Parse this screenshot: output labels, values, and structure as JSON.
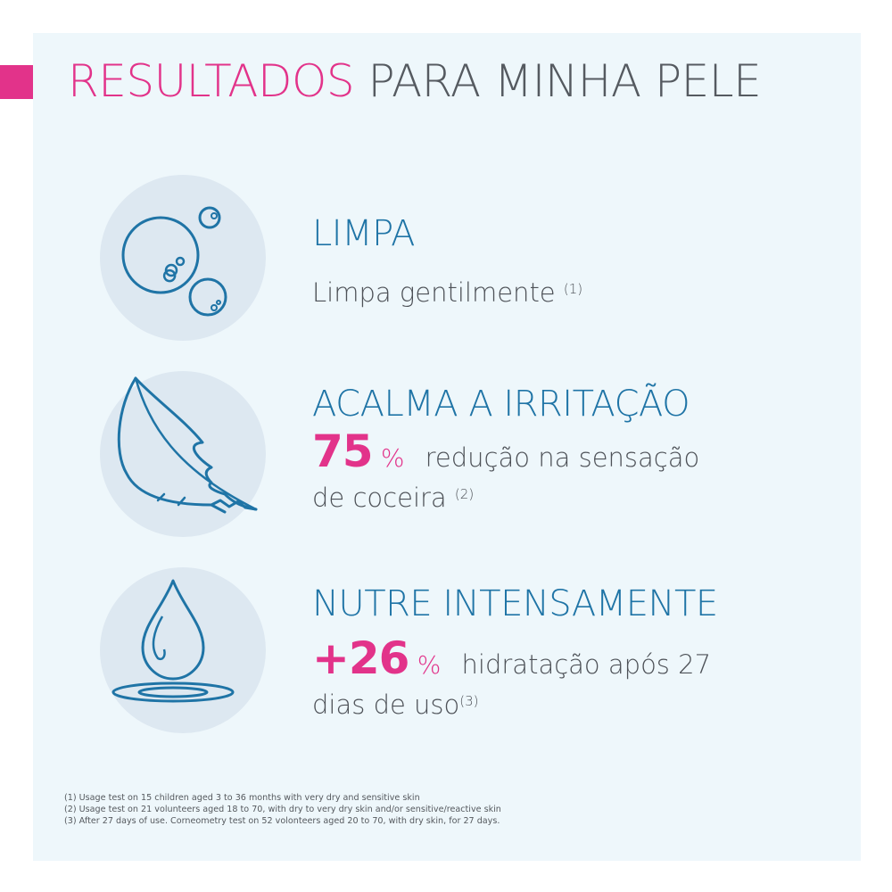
{
  "title": {
    "part1": "RESULTADOS",
    "part2": "PARA MINHA PELE"
  },
  "colors": {
    "accent": "#e2338a",
    "heading": "#1f74a6",
    "text": "#4d5157",
    "panel": "#eef7fb",
    "circle": "#dde8f1"
  },
  "benefits": [
    {
      "icon": "bubbles-icon",
      "heading": "LIMPA",
      "text": "Limpa gentilmente",
      "ref": "(1)"
    },
    {
      "icon": "feather-icon",
      "heading": "ACALMA A IRRITAÇÃO",
      "stat": "75",
      "stat_unit": "%",
      "text_line1": "redução na sensação",
      "text_line2": "de coceira",
      "ref": "(2)"
    },
    {
      "icon": "water-drop-icon",
      "heading": "NUTRE INTENSAMENTE",
      "stat": "+26",
      "stat_unit": "%",
      "text_line1": "hidratação após 27",
      "text_line2": "dias de uso",
      "ref": "(3)"
    }
  ],
  "footnotes": [
    "(1) Usage test on 15 children aged 3 to 36 months with very dry and sensitive skin",
    "(2) Usage test on 21 volunteers aged 18 to 70, with dry to very dry skin and/or sensitive/reactive skin",
    "(3) After 27 days of use. Corneometry test on 52 volonteers aged 20 to 70, with dry skin, for 27 days."
  ]
}
